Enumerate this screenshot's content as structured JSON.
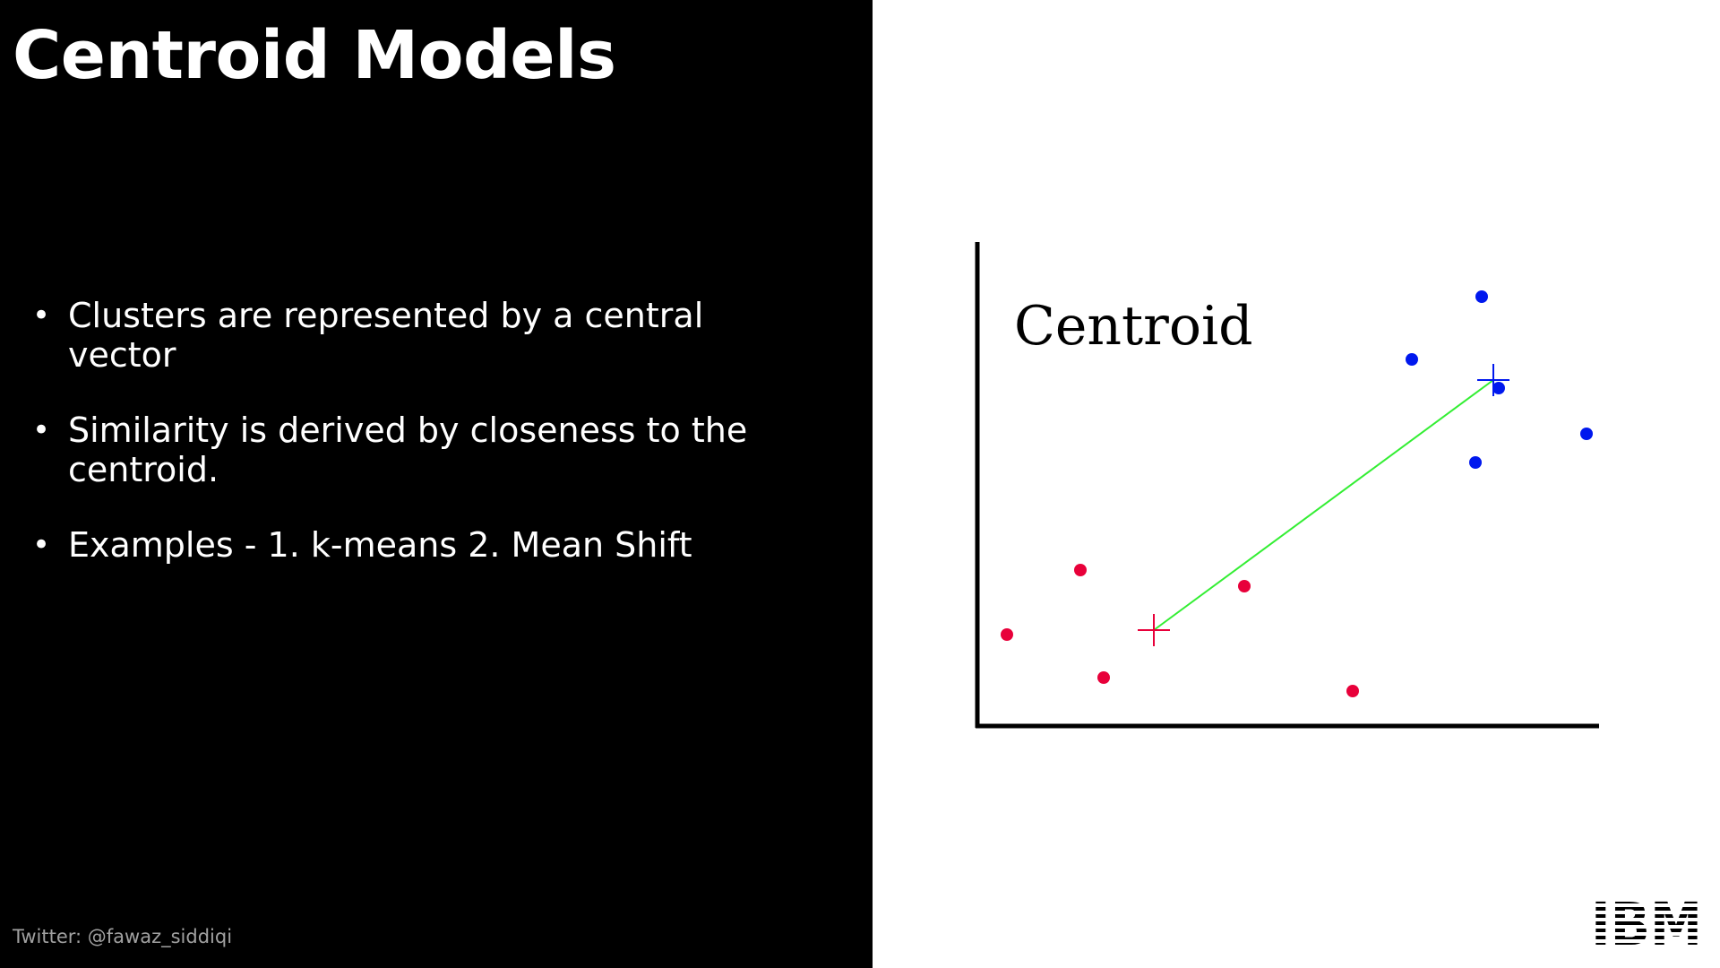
{
  "slide": {
    "title": "Centroid Models",
    "bullets": [
      "Clusters are represented by a central vector",
      "Similarity is derived by closeness to the centroid.",
      "Examples - 1. k-means 2. Mean Shift"
    ],
    "footer": "Twitter: @fawaz_siddiqi",
    "logo": {
      "text": "IBM",
      "icon": "ibm-logo"
    }
  },
  "chart_data": {
    "type": "scatter",
    "title": "",
    "annotation": "Centroid",
    "xlabel": "",
    "ylabel": "",
    "grid": false,
    "show_ticks": false,
    "colors": {
      "red_cluster": "#e8003a",
      "blue_cluster": "#0018ee",
      "link": "#33ee33",
      "axes": "#000000"
    },
    "series": [
      {
        "color": "#e8003a",
        "points": [
          [
            33,
            102
          ],
          [
            115,
            174
          ],
          [
            141,
            54
          ],
          [
            298,
            156
          ],
          [
            419,
            39
          ]
        ]
      },
      {
        "color": "#0018ee",
        "points": [
          [
            485,
            409
          ],
          [
            563,
            479
          ],
          [
            556,
            294
          ],
          [
            582,
            377
          ],
          [
            680,
            326
          ]
        ]
      }
    ],
    "centroids": [
      {
        "color": "#e8003a",
        "point": [
          197,
          107
        ]
      },
      {
        "color": "#0018ee",
        "point": [
          576,
          386
        ]
      }
    ],
    "link": {
      "from": 0,
      "to": 1
    }
  }
}
